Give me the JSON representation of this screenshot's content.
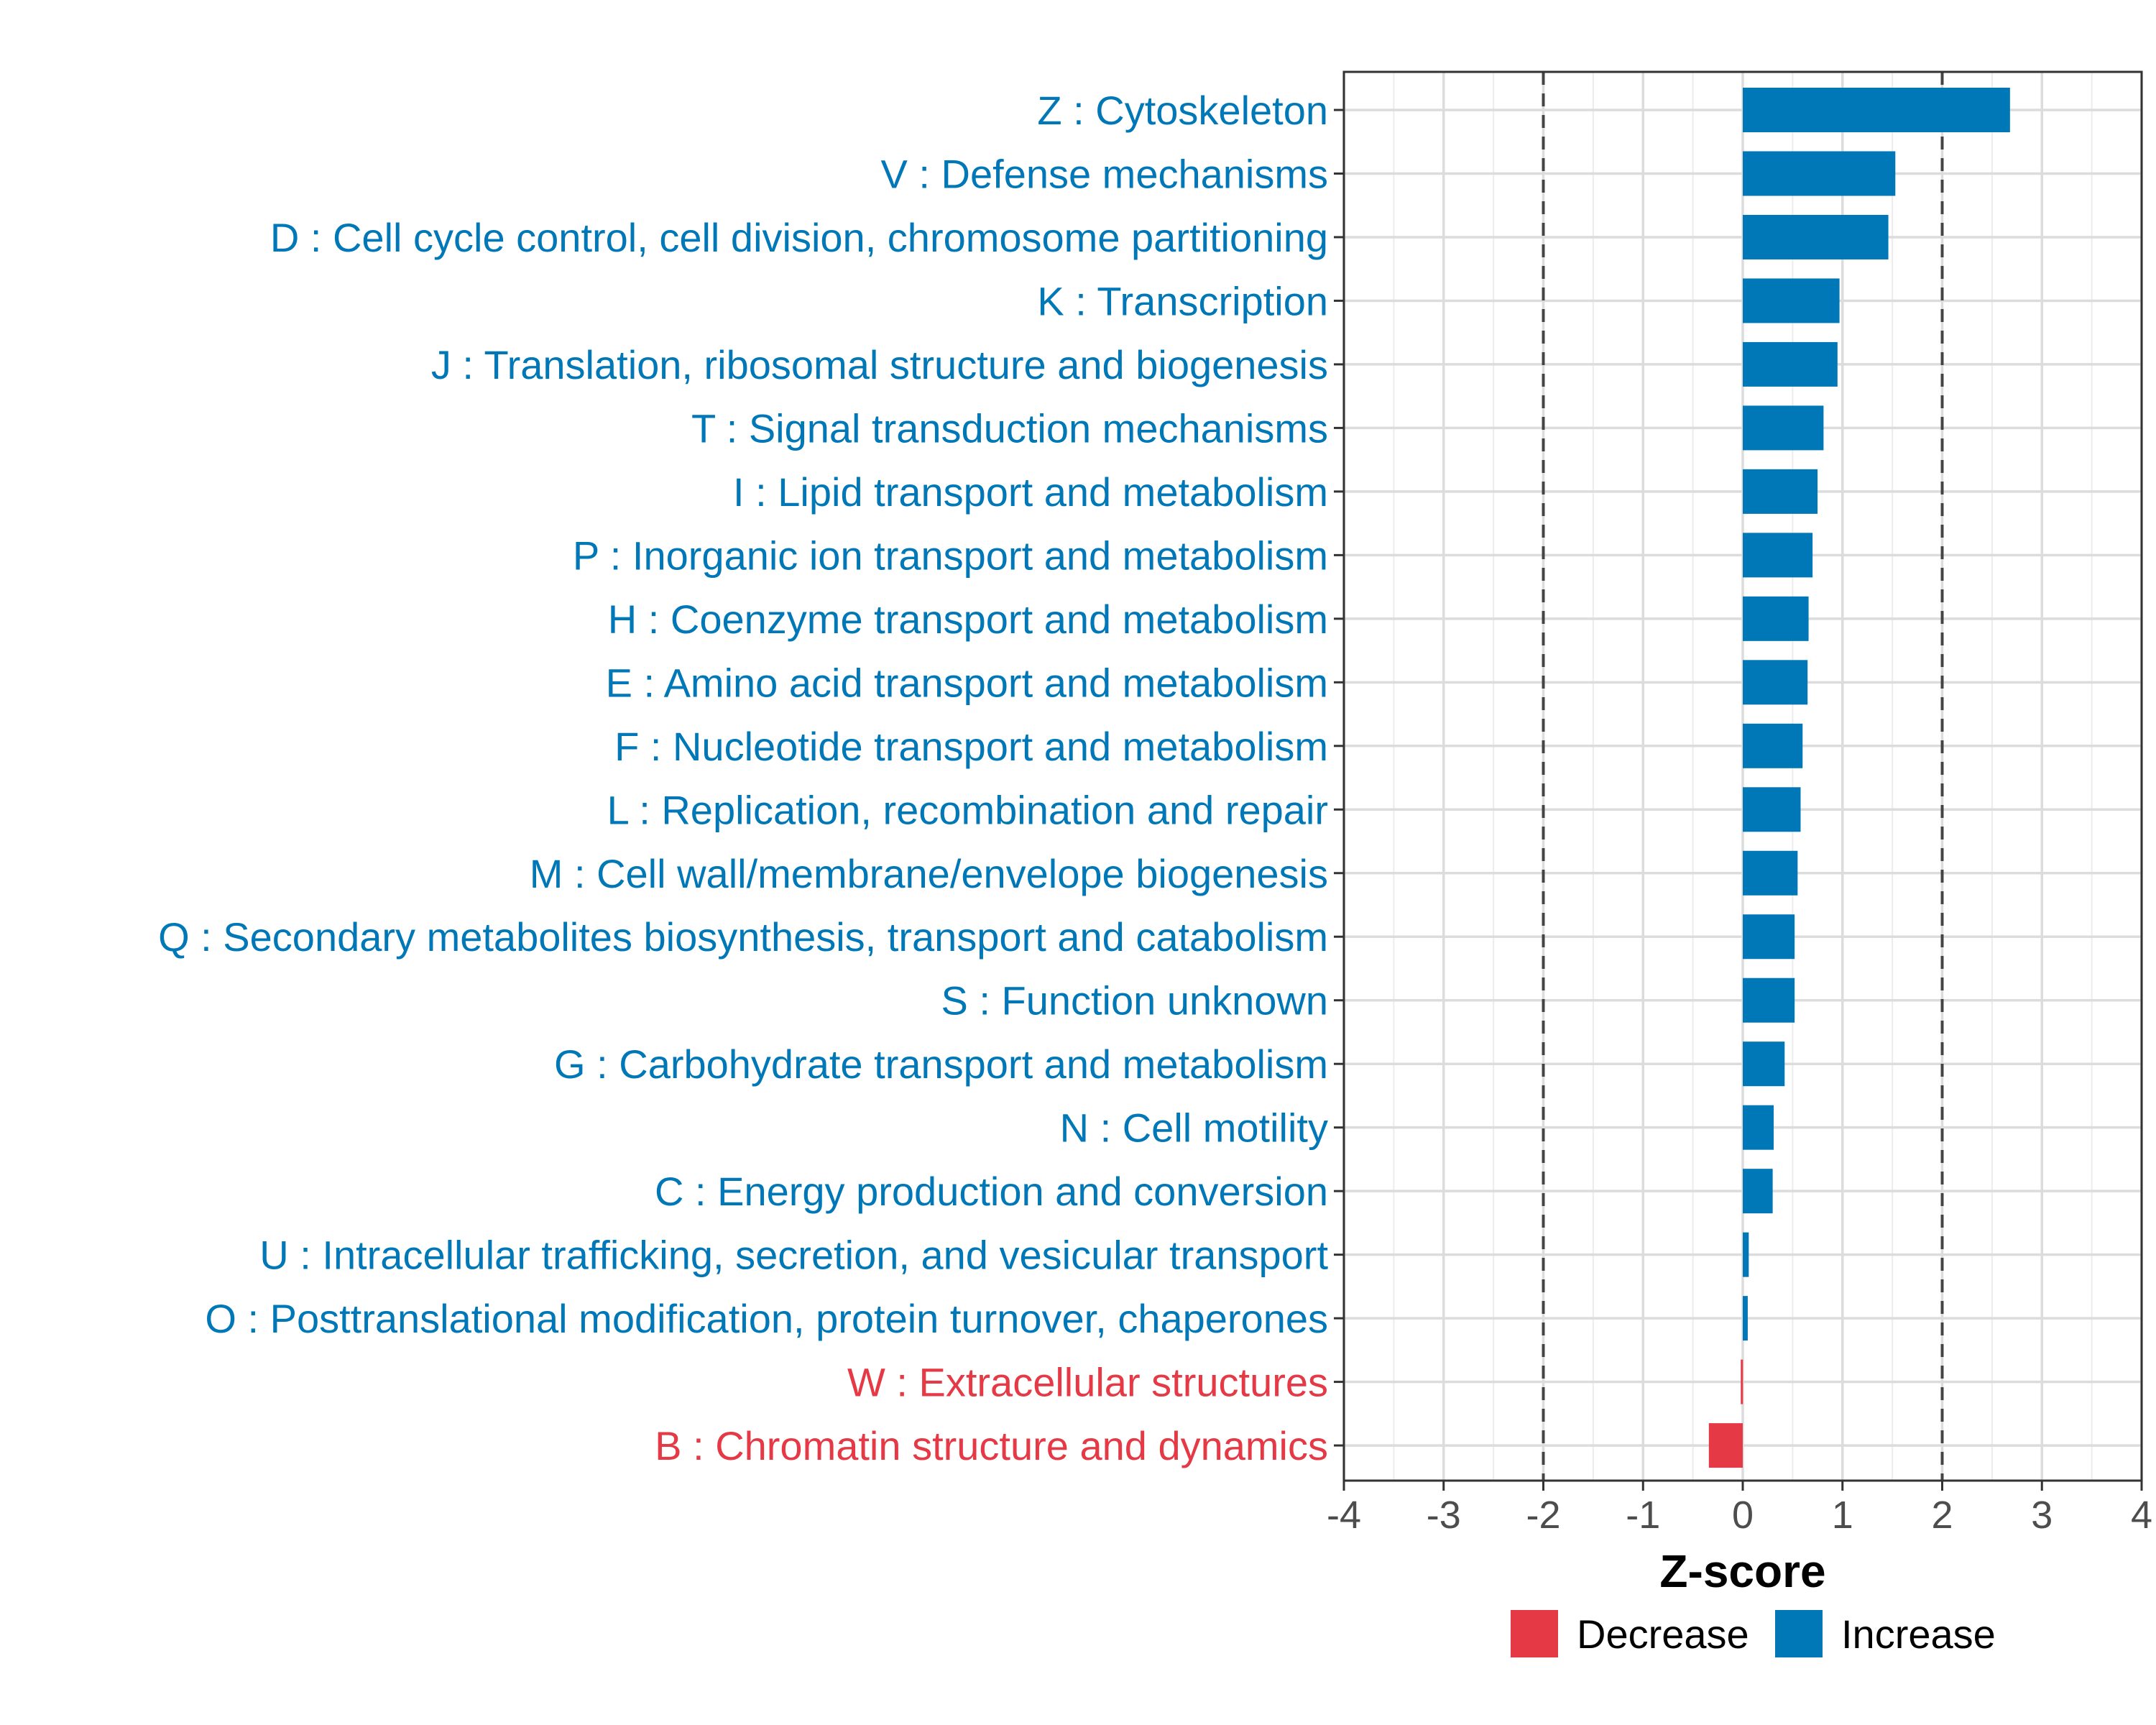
{
  "chart_data": {
    "type": "bar",
    "orientation": "horizontal",
    "title": "",
    "xlabel": "Z-score",
    "ylabel": "",
    "xlim": [
      -4,
      4
    ],
    "xticks": [
      -4,
      -3,
      -2,
      -1,
      0,
      1,
      2,
      3,
      4
    ],
    "xtick_labels": [
      "-4",
      "-3",
      "-2",
      "-1",
      "0",
      "1",
      "2",
      "3",
      "4"
    ],
    "reference_lines": [
      -2,
      2
    ],
    "grid": true,
    "legend_position": "bottom",
    "colors": {
      "Decrease": "#e63946",
      "Increase": "#0077b6"
    },
    "legend": [
      {
        "label": "Decrease",
        "color": "#e63946"
      },
      {
        "label": "Increase",
        "color": "#0077b6"
      }
    ],
    "categories": [
      "Z : Cytoskeleton",
      "V : Defense mechanisms",
      "D : Cell cycle control, cell division, chromosome partitioning",
      "K : Transcription",
      "J : Translation, ribosomal structure and biogenesis",
      "T : Signal transduction mechanisms",
      "I : Lipid transport and metabolism",
      "P : Inorganic ion transport and metabolism",
      "H : Coenzyme transport and metabolism",
      "E : Amino acid transport and metabolism",
      "F : Nucleotide transport and metabolism",
      "L : Replication, recombination and repair",
      "M : Cell wall/membrane/envelope biogenesis",
      "Q : Secondary metabolites biosynthesis, transport and catabolism",
      "S : Function unknown",
      "G : Carbohydrate transport and metabolism",
      "N : Cell motility",
      "C : Energy production and conversion",
      "U : Intracellular trafficking, secretion, and vesicular transport",
      "O : Posttranslational modification, protein turnover, chaperones",
      "W : Extracellular structures",
      "B : Chromatin structure and dynamics"
    ],
    "values": [
      2.68,
      1.53,
      1.46,
      0.97,
      0.95,
      0.81,
      0.75,
      0.7,
      0.66,
      0.65,
      0.6,
      0.58,
      0.55,
      0.52,
      0.52,
      0.42,
      0.31,
      0.3,
      0.06,
      0.05,
      -0.02,
      -0.34
    ],
    "direction": [
      "Increase",
      "Increase",
      "Increase",
      "Increase",
      "Increase",
      "Increase",
      "Increase",
      "Increase",
      "Increase",
      "Increase",
      "Increase",
      "Increase",
      "Increase",
      "Increase",
      "Increase",
      "Increase",
      "Increase",
      "Increase",
      "Increase",
      "Increase",
      "Decrease",
      "Decrease"
    ]
  }
}
